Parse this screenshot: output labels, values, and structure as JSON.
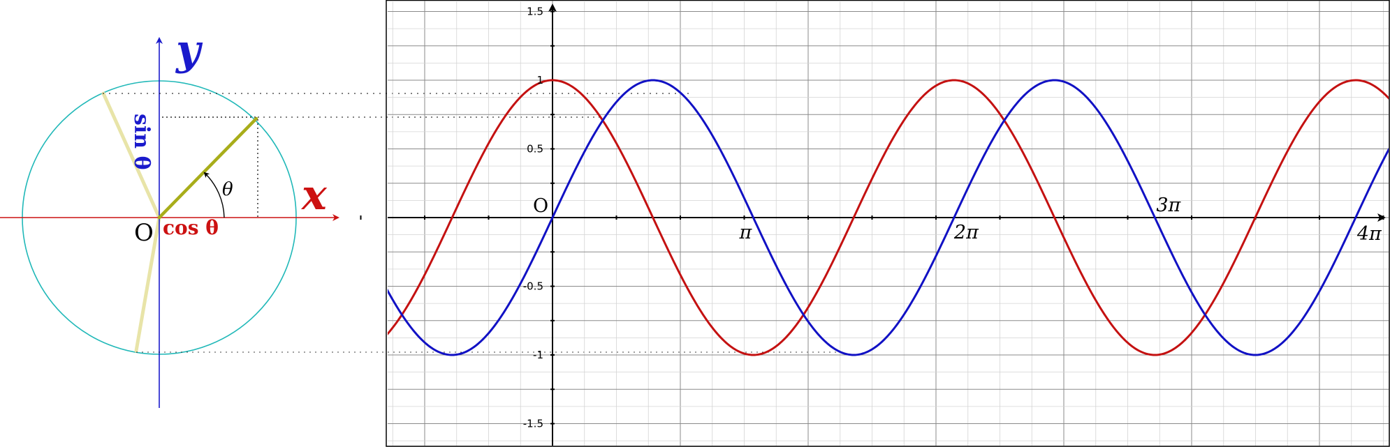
{
  "unit_circle": {
    "x_axis_label": "x",
    "y_axis_label": "y",
    "origin_label": "O",
    "angle_label": "θ",
    "cos_label": "cos θ",
    "sin_label": "sin θ",
    "theta_deg": 45,
    "colors": {
      "circle": "#20b8b8",
      "x_axis": "#cc1111",
      "y_axis": "#1a1acc",
      "radius": "#a8ad1a",
      "faded_radius": "#e8e4a8"
    }
  },
  "chart_data": {
    "type": "line",
    "xlim": [
      -3.23,
      16.96
    ],
    "ylim": [
      -1.6,
      1.6
    ],
    "y_ticks": [
      "1.5",
      "1",
      "0.5",
      "-0.5",
      "-1",
      "-1.5"
    ],
    "y_tick_values": [
      1.5,
      1,
      0.5,
      -0.5,
      -1,
      -1.5
    ],
    "origin_label": "O",
    "pi_labels": [
      "π",
      "2π",
      "3π",
      "4π"
    ],
    "pi_multiples": [
      1,
      2,
      3,
      4
    ],
    "grid": true,
    "series": [
      {
        "function": "cos",
        "color": "#c41111"
      },
      {
        "function": "sin",
        "color": "#1111c4"
      }
    ]
  }
}
